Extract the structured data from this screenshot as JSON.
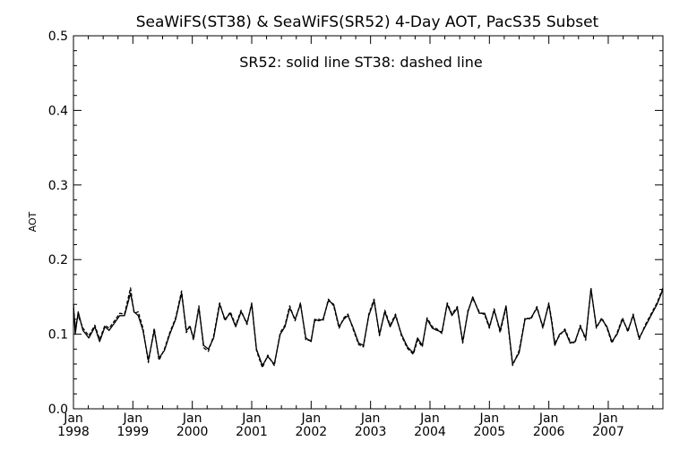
{
  "chart_data": {
    "type": "line",
    "title": "SeaWiFS(ST38) & SeaWiFS(SR52) 4-Day AOT, PacS35 Subset",
    "annotation": "SR52: solid line   ST38: dashed line",
    "ylabel": "AOT",
    "xlabel": "",
    "ylim": [
      0.0,
      0.5
    ],
    "xlim": [
      1998.0,
      2007.92
    ],
    "yticks": [
      "0.0",
      "0.1",
      "0.2",
      "0.3",
      "0.4",
      "0.5"
    ],
    "xticks": [
      {
        "month": "Jan",
        "year": "1998"
      },
      {
        "month": "Jan",
        "year": "1999"
      },
      {
        "month": "Jan",
        "year": "2000"
      },
      {
        "month": "Jan",
        "year": "2001"
      },
      {
        "month": "Jan",
        "year": "2002"
      },
      {
        "month": "Jan",
        "year": "2003"
      },
      {
        "month": "Jan",
        "year": "2004"
      },
      {
        "month": "Jan",
        "year": "2005"
      },
      {
        "month": "Jan",
        "year": "2006"
      },
      {
        "month": "Jan",
        "year": "2007"
      }
    ],
    "grid": false,
    "series": [
      {
        "name": "SR52",
        "style": "solid",
        "color": "#000000",
        "x": [
          1998.0,
          1998.03,
          1998.08,
          1998.16,
          1998.26,
          1998.36,
          1998.44,
          1998.53,
          1998.6,
          1998.69,
          1998.78,
          1998.86,
          1998.96,
          1999.02,
          1999.09,
          1999.17,
          1999.26,
          1999.36,
          1999.44,
          1999.53,
          1999.62,
          1999.72,
          1999.82,
          1999.9,
          1999.96,
          2000.02,
          2000.11,
          2000.19,
          2000.27,
          2000.36,
          2000.46,
          2000.55,
          2000.64,
          2000.73,
          2000.82,
          2000.92,
          2001.0,
          2001.08,
          2001.18,
          2001.27,
          2001.38,
          2001.48,
          2001.56,
          2001.64,
          2001.73,
          2001.82,
          2001.91,
          2002.0,
          2002.06,
          2002.13,
          2002.2,
          2002.29,
          2002.38,
          2002.47,
          2002.55,
          2002.62,
          2002.7,
          2002.8,
          2002.88,
          2002.97,
          2003.06,
          2003.15,
          2003.24,
          2003.33,
          2003.42,
          2003.52,
          2003.62,
          2003.72,
          2003.79,
          2003.87,
          2003.95,
          2004.04,
          2004.12,
          2004.2,
          2004.29,
          2004.37,
          2004.46,
          2004.55,
          2004.64,
          2004.72,
          2004.83,
          2004.92,
          2005.0,
          2005.08,
          2005.18,
          2005.28,
          2005.39,
          2005.5,
          2005.6,
          2005.7,
          2005.8,
          2005.9,
          2006.0,
          2006.05,
          2006.1,
          2006.18,
          2006.27,
          2006.36,
          2006.44,
          2006.53,
          2006.62,
          2006.71,
          2006.8,
          2006.89,
          2006.98,
          2007.06,
          2007.15,
          2007.24,
          2007.33,
          2007.42,
          2007.52,
          2007.62,
          2007.72,
          2007.82,
          2007.92
        ],
        "y": [
          0.14,
          0.1,
          0.13,
          0.105,
          0.095,
          0.11,
          0.09,
          0.11,
          0.105,
          0.115,
          0.125,
          0.125,
          0.155,
          0.13,
          0.125,
          0.105,
          0.065,
          0.105,
          0.068,
          0.078,
          0.1,
          0.12,
          0.155,
          0.105,
          0.11,
          0.095,
          0.135,
          0.085,
          0.08,
          0.095,
          0.14,
          0.12,
          0.128,
          0.11,
          0.13,
          0.115,
          0.14,
          0.08,
          0.058,
          0.07,
          0.06,
          0.1,
          0.11,
          0.135,
          0.12,
          0.14,
          0.095,
          0.09,
          0.12,
          0.118,
          0.12,
          0.145,
          0.14,
          0.11,
          0.12,
          0.125,
          0.11,
          0.088,
          0.085,
          0.125,
          0.145,
          0.1,
          0.13,
          0.11,
          0.125,
          0.1,
          0.083,
          0.075,
          0.095,
          0.085,
          0.12,
          0.108,
          0.105,
          0.103,
          0.14,
          0.125,
          0.135,
          0.09,
          0.13,
          0.15,
          0.128,
          0.128,
          0.11,
          0.132,
          0.105,
          0.138,
          0.06,
          0.075,
          0.12,
          0.122,
          0.135,
          0.11,
          0.14,
          0.115,
          0.085,
          0.1,
          0.105,
          0.088,
          0.09,
          0.11,
          0.095,
          0.16,
          0.11,
          0.12,
          0.11,
          0.09,
          0.1,
          0.12,
          0.105,
          0.125,
          0.095,
          0.11,
          0.125,
          0.14,
          0.16
        ]
      },
      {
        "name": "ST38",
        "style": "dashed",
        "color": "#000000",
        "x": [
          1998.0,
          1998.03,
          1998.08,
          1998.16,
          1998.26,
          1998.36,
          1998.44,
          1998.53,
          1998.6,
          1998.69,
          1998.78,
          1998.86,
          1998.96,
          1999.02,
          1999.09,
          1999.17,
          1999.26,
          1999.36,
          1999.44,
          1999.53,
          1999.62,
          1999.72,
          1999.82,
          1999.9,
          1999.96,
          2000.02,
          2000.11,
          2000.19,
          2000.27,
          2000.36,
          2000.46,
          2000.55,
          2000.64,
          2000.73,
          2000.82,
          2000.92,
          2001.0,
          2001.08,
          2001.18,
          2001.27,
          2001.38,
          2001.48,
          2001.56,
          2001.64,
          2001.73,
          2001.82,
          2001.91,
          2002.0,
          2002.06,
          2002.13,
          2002.2,
          2002.29,
          2002.38,
          2002.47,
          2002.55,
          2002.62,
          2002.7,
          2002.8,
          2002.88,
          2002.97,
          2003.06,
          2003.15,
          2003.24,
          2003.33,
          2003.42,
          2003.52,
          2003.62,
          2003.72,
          2003.79,
          2003.87,
          2003.95,
          2004.04,
          2004.12,
          2004.2,
          2004.29,
          2004.37,
          2004.46,
          2004.55,
          2004.64,
          2004.72,
          2004.83,
          2004.92,
          2005.0,
          2005.08,
          2005.18,
          2005.28,
          2005.39,
          2005.5,
          2005.6,
          2005.7,
          2005.8,
          2005.9,
          2006.0,
          2006.05,
          2006.1,
          2006.18,
          2006.27,
          2006.36,
          2006.44,
          2006.53,
          2006.62,
          2006.71,
          2006.8,
          2006.89,
          2006.98,
          2007.06,
          2007.15,
          2007.24,
          2007.33,
          2007.42,
          2007.52,
          2007.62,
          2007.72,
          2007.82,
          2007.92
        ],
        "y": [
          0.135,
          0.11,
          0.125,
          0.108,
          0.098,
          0.112,
          0.093,
          0.112,
          0.108,
          0.118,
          0.128,
          0.127,
          0.162,
          0.128,
          0.13,
          0.108,
          0.062,
          0.108,
          0.065,
          0.08,
          0.102,
          0.122,
          0.158,
          0.102,
          0.112,
          0.092,
          0.138,
          0.082,
          0.077,
          0.098,
          0.142,
          0.118,
          0.13,
          0.112,
          0.132,
          0.113,
          0.142,
          0.078,
          0.055,
          0.072,
          0.058,
          0.102,
          0.112,
          0.138,
          0.118,
          0.142,
          0.092,
          0.092,
          0.118,
          0.12,
          0.118,
          0.147,
          0.138,
          0.108,
          0.122,
          0.127,
          0.108,
          0.086,
          0.083,
          0.127,
          0.147,
          0.098,
          0.132,
          0.112,
          0.127,
          0.098,
          0.081,
          0.073,
          0.092,
          0.083,
          0.122,
          0.11,
          0.107,
          0.101,
          0.142,
          0.127,
          0.137,
          0.088,
          0.132,
          0.148,
          0.13,
          0.126,
          0.108,
          0.134,
          0.102,
          0.136,
          0.058,
          0.078,
          0.122,
          0.12,
          0.137,
          0.108,
          0.142,
          0.118,
          0.088,
          0.098,
          0.107,
          0.09,
          0.088,
          0.112,
          0.092,
          0.162,
          0.108,
          0.122,
          0.108,
          0.088,
          0.102,
          0.122,
          0.103,
          0.127,
          0.093,
          0.112,
          0.127,
          0.142,
          0.162
        ]
      }
    ]
  }
}
